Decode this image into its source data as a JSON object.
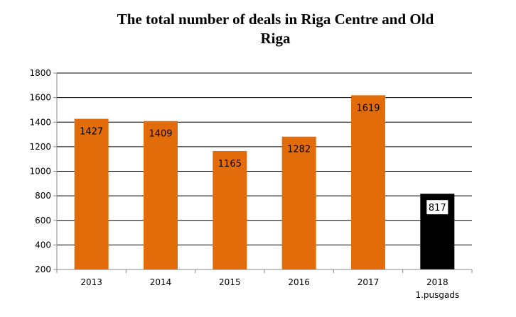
{
  "chart_data": {
    "type": "bar",
    "title_lines": [
      "The total number of deals in Riga Centre and Old",
      "Riga"
    ],
    "categories": [
      {
        "label": "2013",
        "sublabel": ""
      },
      {
        "label": "2014",
        "sublabel": ""
      },
      {
        "label": "2015",
        "sublabel": ""
      },
      {
        "label": "2016",
        "sublabel": ""
      },
      {
        "label": "2017",
        "sublabel": ""
      },
      {
        "label": "2018",
        "sublabel": "1.pusgads"
      }
    ],
    "values": [
      1427,
      1409,
      1165,
      1282,
      1619,
      817
    ],
    "value_labels": [
      "1427",
      "1409",
      "1165",
      "1282",
      "1619",
      "817"
    ],
    "highlight_index": 5,
    "ylim": [
      200,
      1800
    ],
    "yticks": [
      200,
      400,
      600,
      800,
      1000,
      1200,
      1400,
      1600,
      1800
    ],
    "grid": true,
    "xlabel": "",
    "ylabel": "",
    "colors": {
      "bar": "#e36c0a",
      "highlight": "#000000",
      "grid": "#000000",
      "axis": "#888888"
    }
  }
}
